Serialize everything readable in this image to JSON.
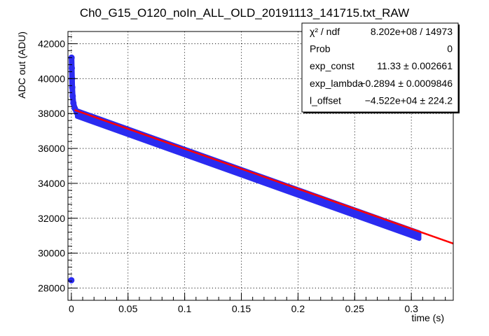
{
  "chart_data": {
    "type": "scatter",
    "title": "Ch0_G15_O120_noIn_ALL_OLD_20191113_141715.txt_RAW",
    "xlabel": "time (s)",
    "ylabel": "ADC out (ADU)",
    "xlim": [
      -0.003,
      0.337
    ],
    "ylim": [
      27300,
      42700
    ],
    "x_ticks": [
      0,
      0.05,
      0.1,
      0.15,
      0.2,
      0.25,
      0.3
    ],
    "x_tick_labels": [
      "0",
      "0.05",
      "0.1",
      "0.15",
      "0.2",
      "0.25",
      "0.3"
    ],
    "y_ticks": [
      28000,
      30000,
      32000,
      34000,
      36000,
      38000,
      40000,
      42000
    ],
    "y_tick_labels": [
      "28000",
      "30000",
      "32000",
      "34000",
      "36000",
      "38000",
      "40000",
      "42000"
    ],
    "grid": true,
    "grid_style": "dotted",
    "colors": {
      "data": "#2b2bf0",
      "fit": "#ff0000",
      "frame": "#000000"
    },
    "series": [
      {
        "kind": "data-points",
        "color": "#2b2bf0",
        "x_range": [
          0,
          0.307
        ],
        "band_start": [
          0.005,
          38000
        ],
        "band_end": [
          0.307,
          31000
        ],
        "band_halfwidth": 180,
        "initial_spike": [
          [
            0.0002,
            41200
          ],
          [
            0.0004,
            40600
          ],
          [
            0.0006,
            40000
          ],
          [
            0.0008,
            39500
          ],
          [
            0.0012,
            39000
          ],
          [
            0.0018,
            38600
          ],
          [
            0.003,
            38300
          ]
        ],
        "outliers": [
          [
            0.0,
            28450
          ]
        ]
      },
      {
        "kind": "fit-line",
        "color": "#ff0000",
        "points": [
          [
            0.003,
            38200
          ],
          [
            0.337,
            30550
          ]
        ]
      }
    ],
    "stats_box": {
      "rows": [
        {
          "label": "χ² / ndf",
          "value": "8.202e+08 / 14973"
        },
        {
          "label": "Prob",
          "value": "0"
        },
        {
          "label": "exp_const",
          "value": "11.33 ± 0.002661"
        },
        {
          "label": "exp_lambda",
          "value": "−0.2894 ± 0.0009846"
        },
        {
          "label": "l_offset",
          "value": "−4.522e+04 ± 224.2"
        }
      ]
    }
  }
}
